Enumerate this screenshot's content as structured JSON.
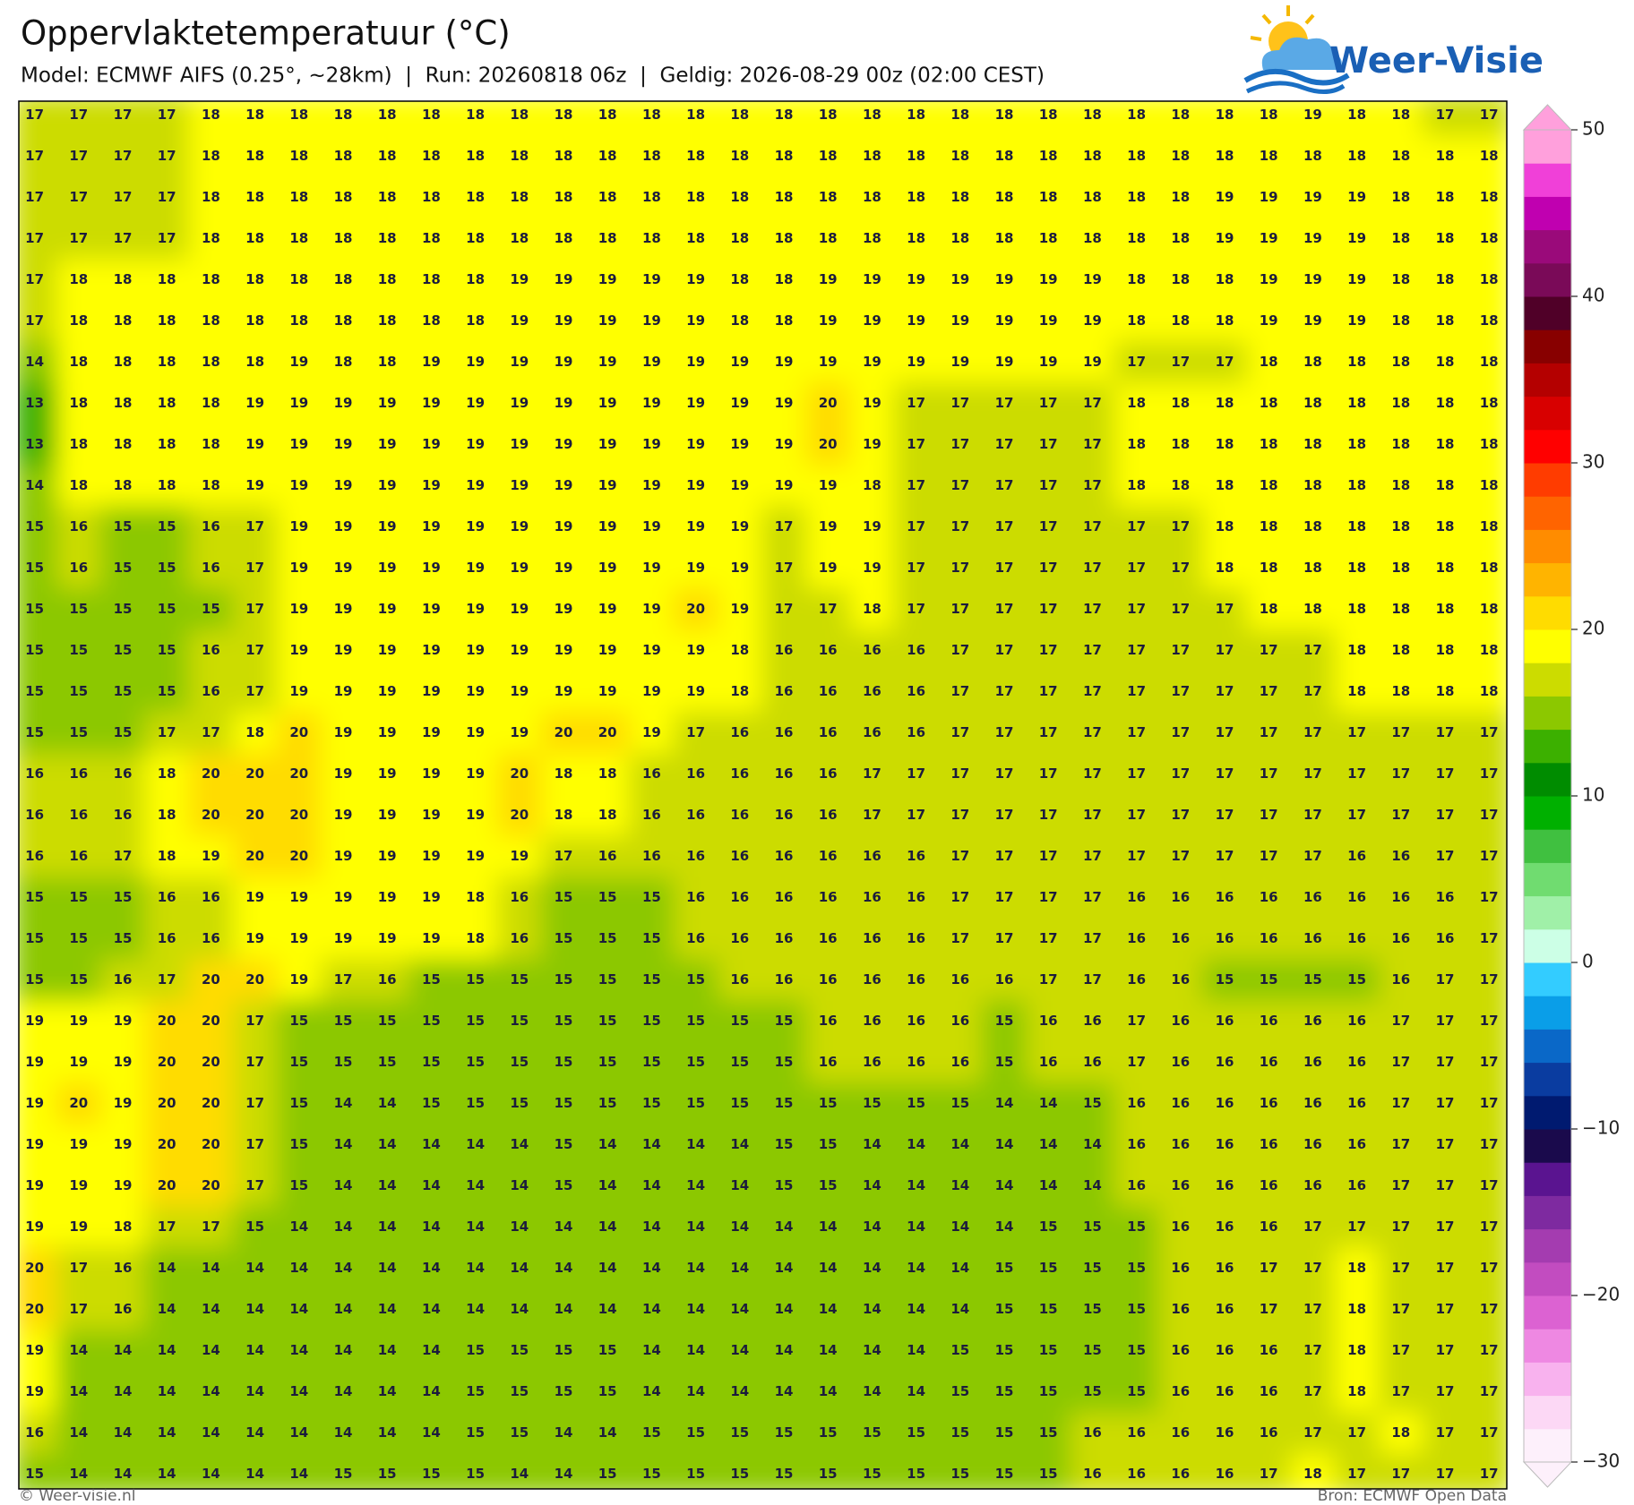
{
  "header": {
    "title": "Oppervlaktetemperatuur (°C)",
    "subtitle": "Model: ECMWF AIFS (0.25°, ~28km)  |  Run: 20260818 06z  |  Geldig: 2026-08-29 00z (02:00 CEST)"
  },
  "logo": {
    "text": "Weer-Visie"
  },
  "grid": {
    "rows": [
      [
        17,
        17,
        17,
        17,
        18,
        18,
        18,
        18,
        18,
        18,
        18,
        18,
        18,
        18,
        18,
        18,
        18,
        18,
        18,
        18,
        18,
        18,
        18,
        18,
        18,
        18,
        18,
        18,
        18,
        19,
        18,
        18,
        17,
        17
      ],
      [
        17,
        17,
        17,
        17,
        18,
        18,
        18,
        18,
        18,
        18,
        18,
        18,
        18,
        18,
        18,
        18,
        18,
        18,
        18,
        18,
        18,
        18,
        18,
        18,
        18,
        18,
        18,
        18,
        18,
        18,
        18,
        18,
        18,
        18
      ],
      [
        17,
        17,
        17,
        17,
        18,
        18,
        18,
        18,
        18,
        18,
        18,
        18,
        18,
        18,
        18,
        18,
        18,
        18,
        18,
        18,
        18,
        18,
        18,
        18,
        18,
        18,
        18,
        19,
        19,
        19,
        19,
        18,
        18,
        18
      ],
      [
        17,
        17,
        17,
        17,
        18,
        18,
        18,
        18,
        18,
        18,
        18,
        18,
        18,
        18,
        18,
        18,
        18,
        18,
        18,
        18,
        18,
        18,
        18,
        18,
        18,
        18,
        18,
        19,
        19,
        19,
        19,
        18,
        18,
        18
      ],
      [
        17,
        18,
        18,
        18,
        18,
        18,
        18,
        18,
        18,
        18,
        18,
        19,
        19,
        19,
        19,
        19,
        18,
        18,
        19,
        19,
        19,
        19,
        19,
        19,
        19,
        18,
        18,
        18,
        19,
        19,
        19,
        18,
        18,
        18
      ],
      [
        17,
        18,
        18,
        18,
        18,
        18,
        18,
        18,
        18,
        18,
        18,
        19,
        19,
        19,
        19,
        19,
        18,
        18,
        19,
        19,
        19,
        19,
        19,
        19,
        19,
        18,
        18,
        18,
        19,
        19,
        19,
        18,
        18,
        18
      ],
      [
        14,
        18,
        18,
        18,
        18,
        18,
        19,
        18,
        18,
        19,
        19,
        19,
        19,
        19,
        19,
        19,
        19,
        19,
        19,
        19,
        19,
        19,
        19,
        19,
        19,
        17,
        17,
        17,
        18,
        18,
        18,
        18,
        18,
        18
      ],
      [
        13,
        18,
        18,
        18,
        18,
        19,
        19,
        19,
        19,
        19,
        19,
        19,
        19,
        19,
        19,
        19,
        19,
        19,
        20,
        19,
        17,
        17,
        17,
        17,
        17,
        18,
        18,
        18,
        18,
        18,
        18,
        18,
        18,
        18
      ],
      [
        13,
        18,
        18,
        18,
        18,
        19,
        19,
        19,
        19,
        19,
        19,
        19,
        19,
        19,
        19,
        19,
        19,
        19,
        20,
        19,
        17,
        17,
        17,
        17,
        17,
        18,
        18,
        18,
        18,
        18,
        18,
        18,
        18,
        18
      ],
      [
        14,
        18,
        18,
        18,
        18,
        19,
        19,
        19,
        19,
        19,
        19,
        19,
        19,
        19,
        19,
        19,
        19,
        19,
        19,
        18,
        17,
        17,
        17,
        17,
        17,
        18,
        18,
        18,
        18,
        18,
        18,
        18,
        18,
        18
      ],
      [
        15,
        16,
        15,
        15,
        16,
        17,
        19,
        19,
        19,
        19,
        19,
        19,
        19,
        19,
        19,
        19,
        19,
        17,
        19,
        19,
        17,
        17,
        17,
        17,
        17,
        17,
        17,
        18,
        18,
        18,
        18,
        18,
        18,
        18
      ],
      [
        15,
        16,
        15,
        15,
        16,
        17,
        19,
        19,
        19,
        19,
        19,
        19,
        19,
        19,
        19,
        19,
        19,
        17,
        19,
        19,
        17,
        17,
        17,
        17,
        17,
        17,
        17,
        18,
        18,
        18,
        18,
        18,
        18,
        18
      ],
      [
        15,
        15,
        15,
        15,
        15,
        17,
        19,
        19,
        19,
        19,
        19,
        19,
        19,
        19,
        19,
        20,
        19,
        17,
        17,
        18,
        17,
        17,
        17,
        17,
        17,
        17,
        17,
        17,
        18,
        18,
        18,
        18,
        18,
        18
      ],
      [
        15,
        15,
        15,
        15,
        16,
        17,
        19,
        19,
        19,
        19,
        19,
        19,
        19,
        19,
        19,
        19,
        18,
        16,
        16,
        16,
        16,
        17,
        17,
        17,
        17,
        17,
        17,
        17,
        17,
        17,
        18,
        18,
        18,
        18
      ],
      [
        15,
        15,
        15,
        15,
        16,
        17,
        19,
        19,
        19,
        19,
        19,
        19,
        19,
        19,
        19,
        19,
        18,
        16,
        16,
        16,
        16,
        17,
        17,
        17,
        17,
        17,
        17,
        17,
        17,
        17,
        18,
        18,
        18,
        18
      ],
      [
        15,
        15,
        15,
        17,
        17,
        18,
        20,
        19,
        19,
        19,
        19,
        19,
        20,
        20,
        19,
        17,
        16,
        16,
        16,
        16,
        16,
        17,
        17,
        17,
        17,
        17,
        17,
        17,
        17,
        17,
        17,
        17,
        17,
        17
      ],
      [
        16,
        16,
        16,
        18,
        20,
        20,
        20,
        19,
        19,
        19,
        19,
        20,
        18,
        18,
        16,
        16,
        16,
        16,
        16,
        17,
        17,
        17,
        17,
        17,
        17,
        17,
        17,
        17,
        17,
        17,
        17,
        17,
        17,
        17
      ],
      [
        16,
        16,
        16,
        18,
        20,
        20,
        20,
        19,
        19,
        19,
        19,
        20,
        18,
        18,
        16,
        16,
        16,
        16,
        16,
        17,
        17,
        17,
        17,
        17,
        17,
        17,
        17,
        17,
        17,
        17,
        17,
        17,
        17,
        17
      ],
      [
        16,
        16,
        17,
        18,
        19,
        20,
        20,
        19,
        19,
        19,
        19,
        19,
        17,
        16,
        16,
        16,
        16,
        16,
        16,
        16,
        16,
        17,
        17,
        17,
        17,
        17,
        17,
        17,
        17,
        17,
        16,
        16,
        17,
        17
      ],
      [
        15,
        15,
        15,
        16,
        16,
        19,
        19,
        19,
        19,
        19,
        18,
        16,
        15,
        15,
        15,
        16,
        16,
        16,
        16,
        16,
        16,
        17,
        17,
        17,
        17,
        16,
        16,
        16,
        16,
        16,
        16,
        16,
        16,
        17
      ],
      [
        15,
        15,
        15,
        16,
        16,
        19,
        19,
        19,
        19,
        19,
        18,
        16,
        15,
        15,
        15,
        16,
        16,
        16,
        16,
        16,
        16,
        17,
        17,
        17,
        17,
        16,
        16,
        16,
        16,
        16,
        16,
        16,
        16,
        17
      ],
      [
        15,
        15,
        16,
        17,
        20,
        20,
        19,
        17,
        16,
        15,
        15,
        15,
        15,
        15,
        15,
        15,
        16,
        16,
        16,
        16,
        16,
        16,
        16,
        17,
        17,
        16,
        16,
        15,
        15,
        15,
        15,
        16,
        17,
        17
      ],
      [
        19,
        19,
        19,
        20,
        20,
        17,
        15,
        15,
        15,
        15,
        15,
        15,
        15,
        15,
        15,
        15,
        15,
        15,
        16,
        16,
        16,
        16,
        15,
        16,
        16,
        17,
        16,
        16,
        16,
        16,
        16,
        17,
        17,
        17
      ],
      [
        19,
        19,
        19,
        20,
        20,
        17,
        15,
        15,
        15,
        15,
        15,
        15,
        15,
        15,
        15,
        15,
        15,
        15,
        16,
        16,
        16,
        16,
        15,
        16,
        16,
        17,
        16,
        16,
        16,
        16,
        16,
        17,
        17,
        17
      ],
      [
        19,
        20,
        19,
        20,
        20,
        17,
        15,
        14,
        14,
        15,
        15,
        15,
        15,
        15,
        15,
        15,
        15,
        15,
        15,
        15,
        15,
        15,
        14,
        14,
        15,
        16,
        16,
        16,
        16,
        16,
        16,
        17,
        17,
        17
      ],
      [
        19,
        19,
        19,
        20,
        20,
        17,
        15,
        14,
        14,
        14,
        14,
        14,
        15,
        14,
        14,
        14,
        14,
        15,
        15,
        14,
        14,
        14,
        14,
        14,
        14,
        16,
        16,
        16,
        16,
        16,
        16,
        17,
        17,
        17
      ],
      [
        19,
        19,
        19,
        20,
        20,
        17,
        15,
        14,
        14,
        14,
        14,
        14,
        15,
        14,
        14,
        14,
        14,
        15,
        15,
        14,
        14,
        14,
        14,
        14,
        14,
        16,
        16,
        16,
        16,
        16,
        16,
        17,
        17,
        17
      ],
      [
        19,
        19,
        18,
        17,
        17,
        15,
        14,
        14,
        14,
        14,
        14,
        14,
        14,
        14,
        14,
        14,
        14,
        14,
        14,
        14,
        14,
        14,
        14,
        15,
        15,
        15,
        16,
        16,
        16,
        17,
        17,
        17,
        17,
        17
      ],
      [
        20,
        17,
        16,
        14,
        14,
        14,
        14,
        14,
        14,
        14,
        14,
        14,
        14,
        14,
        14,
        14,
        14,
        14,
        14,
        14,
        14,
        14,
        15,
        15,
        15,
        15,
        16,
        16,
        17,
        17,
        18,
        17,
        17,
        17
      ],
      [
        20,
        17,
        16,
        14,
        14,
        14,
        14,
        14,
        14,
        14,
        14,
        14,
        14,
        14,
        14,
        14,
        14,
        14,
        14,
        14,
        14,
        14,
        15,
        15,
        15,
        15,
        16,
        16,
        17,
        17,
        18,
        17,
        17,
        17
      ],
      [
        19,
        14,
        14,
        14,
        14,
        14,
        14,
        14,
        14,
        14,
        15,
        15,
        15,
        15,
        14,
        14,
        14,
        14,
        14,
        14,
        14,
        15,
        15,
        15,
        15,
        15,
        16,
        16,
        16,
        17,
        18,
        17,
        17,
        17
      ],
      [
        19,
        14,
        14,
        14,
        14,
        14,
        14,
        14,
        14,
        14,
        15,
        15,
        15,
        15,
        14,
        14,
        14,
        14,
        14,
        14,
        14,
        15,
        15,
        15,
        15,
        15,
        16,
        16,
        16,
        17,
        18,
        17,
        17,
        17
      ],
      [
        16,
        14,
        14,
        14,
        14,
        14,
        14,
        14,
        14,
        14,
        15,
        15,
        14,
        14,
        15,
        15,
        15,
        15,
        15,
        15,
        15,
        15,
        15,
        15,
        16,
        16,
        16,
        16,
        16,
        17,
        17,
        18,
        17,
        17
      ],
      [
        15,
        14,
        14,
        14,
        14,
        14,
        14,
        15,
        15,
        15,
        15,
        14,
        14,
        15,
        15,
        15,
        15,
        15,
        15,
        15,
        15,
        15,
        15,
        15,
        16,
        16,
        16,
        16,
        17,
        18,
        17,
        17,
        17,
        17
      ]
    ]
  },
  "colorbar": {
    "lim": [
      -30,
      50
    ],
    "ticks": [
      50,
      40,
      30,
      20,
      10,
      0,
      {
        "value": -10,
        "label": "−10"
      },
      {
        "value": -20,
        "label": "−20"
      },
      {
        "value": -30,
        "label": "−30"
      }
    ],
    "colors": [
      "#fdf0fb",
      "#fcd8f5",
      "#f8b2ee",
      "#ee88e2",
      "#dc62d2",
      "#c24cc0",
      "#a43cb0",
      "#7e2aa0",
      "#5a1490",
      "#1a0a4c",
      "#001a70",
      "#0a3ca0",
      "#0a68c8",
      "#0a9ee8",
      "#33ccff",
      "#ccffe6",
      "#a0f0a8",
      "#70dc70",
      "#40c040",
      "#00b000",
      "#008c00",
      "#3cb000",
      "#8cc800",
      "#ccdc00",
      "#ffff00",
      "#ffdc00",
      "#ffb400",
      "#ff8c00",
      "#ff6400",
      "#ff3c00",
      "#ff0000",
      "#d80000",
      "#b40000",
      "#880000",
      "#500028",
      "#7a0a58",
      "#9a0a7a",
      "#c000b0",
      "#f040d8",
      "#ffa0dc"
    ]
  },
  "footer": {
    "left": "© Weer-visie.nl",
    "right": "Bron: ECMWF Open Data"
  }
}
